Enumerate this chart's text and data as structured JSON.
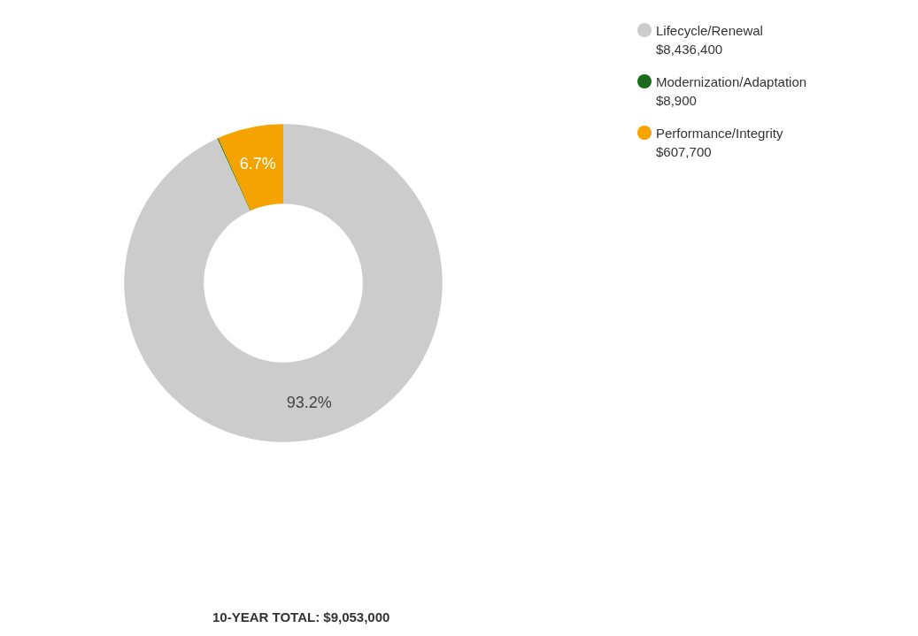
{
  "chart_data": {
    "type": "donut",
    "categories": [
      "Lifecycle/Renewal",
      "Modernization/Adaptation",
      "Performance/Integrity"
    ],
    "values": [
      93.2,
      0.1,
      6.7
    ],
    "colors": [
      "#cccccc",
      "#1b6b1b",
      "#f5a300"
    ],
    "value_labels": [
      "93.2%",
      null,
      "6.7%"
    ],
    "legend": "top right",
    "annotations": [
      {
        "text": "$8,436,400",
        "x": "Lifecycle/Renewal"
      },
      {
        "text": "$8,900",
        "x": "Modernization/Adaptation"
      },
      {
        "text": "$607,700",
        "x": "Performance/Integrity"
      },
      "10-YEAR TOTAL: $9,053,000"
    ]
  }
}
